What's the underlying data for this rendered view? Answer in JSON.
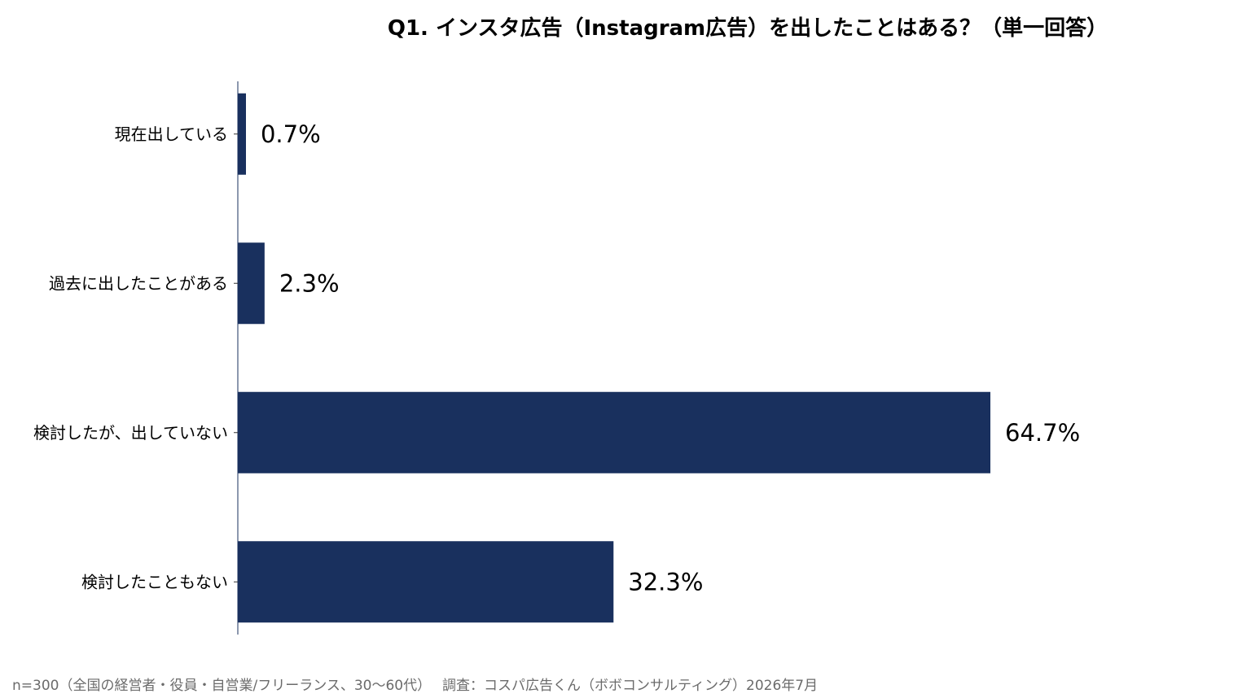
{
  "chart_data": {
    "type": "bar",
    "orientation": "horizontal",
    "title": "Q1. インスタ広告（Instagram広告）を出したことはある？（単一回答）",
    "categories": [
      "現在出している",
      "過去に出したことがある",
      "検討したが、出していない",
      "検討したこともない"
    ],
    "values": [
      0.7,
      2.3,
      64.7,
      32.3
    ],
    "value_labels": [
      "0.7%",
      "2.3%",
      "64.7%",
      "32.3%"
    ],
    "unit": "%",
    "xlim": [
      0,
      100
    ],
    "grid": false,
    "legend": "none",
    "bar_color": "#19305e",
    "note": "n=300（全国の経営者・役員・自営業/フリーランス、30〜60代）　 調査：コスパ広告くん（ボボコンサルティング）2026年7月"
  }
}
